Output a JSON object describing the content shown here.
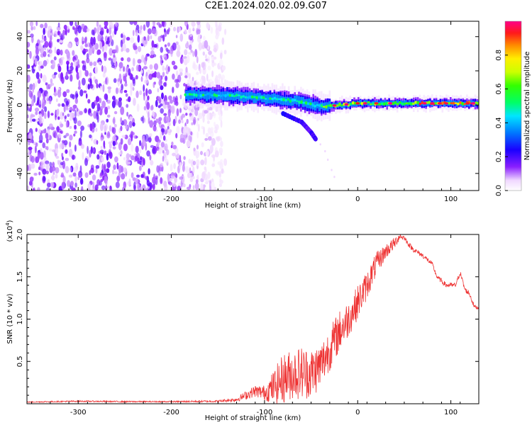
{
  "title": "C2E1.2024.020.02.09.G07",
  "chart_data": [
    {
      "type": "heatmap",
      "xlabel": "Height of straight line (km)",
      "ylabel": "Frequency (Hz)",
      "xlim": [
        -355,
        130
      ],
      "ylim": [
        -50,
        49
      ],
      "xticks": [
        -300,
        -200,
        -100,
        0,
        100
      ],
      "yticks": [
        -40,
        -20,
        0,
        20,
        40
      ],
      "xtick_labels": [
        "-300",
        "-200",
        "-100",
        "0",
        "100"
      ],
      "ytick_labels": [
        "-40",
        "-20",
        "0",
        "20",
        "40"
      ],
      "colorbar": {
        "label": "Normalized spectral amplitude",
        "range": [
          0,
          1
        ],
        "ticks": [
          "0.0",
          "0.2",
          "0.4",
          "0.6",
          "0.8"
        ],
        "tick_values": [
          0.0,
          0.2,
          0.4,
          0.6,
          0.8
        ],
        "colormap": "rainbow (white-violet-blue-cyan-green-yellow-red-magenta)"
      },
      "features": {
        "noise_region_x": [
          -355,
          -150
        ],
        "trace": [
          {
            "x": -185,
            "f": 6
          },
          {
            "x": -150,
            "f": 6
          },
          {
            "x": -120,
            "f": 5
          },
          {
            "x": -100,
            "f": 4
          },
          {
            "x": -80,
            "f": 3
          },
          {
            "x": -60,
            "f": 2
          },
          {
            "x": -40,
            "f": -1
          },
          {
            "x": -20,
            "f": 0
          },
          {
            "x": 0,
            "f": 1
          },
          {
            "x": 40,
            "f": 1
          },
          {
            "x": 80,
            "f": 1
          },
          {
            "x": 130,
            "f": 1
          }
        ],
        "branch": [
          {
            "x": -80,
            "f": -5
          },
          {
            "x": -60,
            "f": -10
          },
          {
            "x": -50,
            "f": -16
          },
          {
            "x": -45,
            "f": -20
          }
        ]
      },
      "grid": false
    },
    {
      "type": "line",
      "xlabel": "Height of straight line (km)",
      "ylabel": "SNR (10 * v/v)",
      "multiplier_label": "(x10",
      "multiplier_exponent": "4",
      "multiplier_close": ")",
      "xlim": [
        -355,
        130
      ],
      "ylim": [
        0,
        20000
      ],
      "xticks": [
        -300,
        -200,
        -100,
        0,
        100
      ],
      "yticks": [
        5000,
        10000,
        15000,
        20000
      ],
      "xtick_labels": [
        "-300",
        "-200",
        "-100",
        "0",
        "100"
      ],
      "ytick_labels": [
        "0.5",
        "1.0",
        "1.5",
        "2.0"
      ],
      "color": "#ee3333",
      "series": [
        {
          "x": [
            -355,
            -300,
            -250,
            -200,
            -150,
            -130,
            -120,
            -110,
            -100,
            -90,
            -80,
            -70,
            -60,
            -50,
            -40,
            -30,
            -20,
            -10,
            0,
            10,
            20,
            30,
            40,
            45,
            50,
            55,
            60,
            70,
            80,
            85,
            90,
            95,
            100,
            105,
            110,
            115,
            120,
            125,
            130
          ],
          "values": [
            200,
            300,
            250,
            250,
            300,
            500,
            1000,
            1500,
            1300,
            2000,
            3000,
            3500,
            3700,
            3600,
            4500,
            6500,
            8500,
            10000,
            12000,
            14000,
            16500,
            18000,
            19000,
            19800,
            19600,
            18800,
            18200,
            17500,
            16500,
            15000,
            14500,
            14000,
            14000,
            14000,
            15500,
            13500,
            13000,
            11500,
            11300
          ],
          "noise": [
            60,
            80,
            80,
            80,
            120,
            250,
            500,
            700,
            900,
            2000,
            3000,
            3000,
            3200,
            3000,
            2800,
            2600,
            2500,
            2200,
            2000,
            1700,
            1400,
            900,
            700,
            400,
            300,
            300,
            300,
            300,
            250,
            250,
            300,
            300,
            300,
            300,
            300,
            300,
            300,
            250,
            200
          ]
        }
      ],
      "grid": false
    }
  ]
}
